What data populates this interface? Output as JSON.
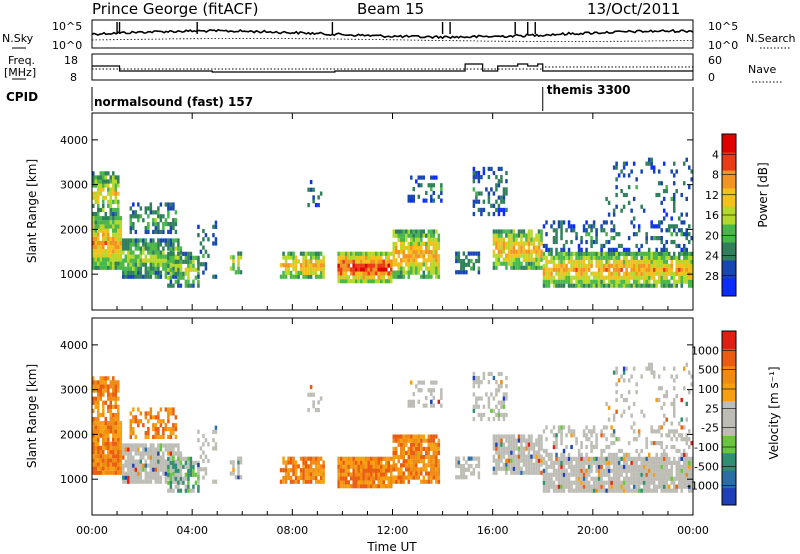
{
  "header": {
    "station": "Prince George (fitACF)",
    "beam": "Beam 15",
    "date": "13/Oct/2011"
  },
  "sky_panel": {
    "left_label": "N.Sky",
    "right_label": "N.Search",
    "tick_top": "10^5",
    "tick_bottom": "10^0"
  },
  "freq_panel": {
    "left_label_line1": "Freq.",
    "left_label_line2": "[MHz]",
    "left_ticks": [
      "18",
      "8"
    ],
    "right_label": "Nave",
    "right_ticks": [
      "60",
      "0"
    ]
  },
  "cpid_panel": {
    "label": "CPID",
    "modes": [
      {
        "name": "normalsound (fast) 157",
        "start_h": 0,
        "end_h": 18
      },
      {
        "name": "themis 3300",
        "start_h": 18,
        "end_h": 24
      }
    ]
  },
  "chart_data": [
    {
      "type": "heatmap",
      "name": "power",
      "ylabel": "Slant Range [km]",
      "ylim": [
        200,
        4600
      ],
      "yticks": [
        "1000",
        "2000",
        "3000",
        "4000"
      ],
      "colorbar_label": "Power [dB]",
      "colorbar_ticks": [
        "4",
        "8",
        "12",
        "16",
        "20",
        "24",
        "28"
      ],
      "colorbar_colors": [
        "#0b2bff",
        "#1846b0",
        "#2f7f5b",
        "#48b648",
        "#b5d92a",
        "#f4c01c",
        "#f39321",
        "#ea3b16",
        "#e00000"
      ]
    },
    {
      "type": "heatmap",
      "name": "velocity",
      "ylabel": "Slant Range [km]",
      "ylim": [
        200,
        4600
      ],
      "yticks": [
        "1000",
        "2000",
        "3000",
        "4000"
      ],
      "colorbar_label": "Velocity [m s⁻¹]",
      "colorbar_ticks": [
        "1000",
        "500",
        "100",
        "25",
        "-25",
        "-100",
        "-500",
        "-1000"
      ],
      "colorbar_colors": [
        "#1d3fb8",
        "#2a6ea5",
        "#2f8f70",
        "#69c440",
        "#bdbdb5",
        "#bdbdb5",
        "#f5a013",
        "#f08a10",
        "#ea5d10",
        "#e21e10"
      ]
    }
  ],
  "x_axis": {
    "label": "Time UT",
    "ticks": [
      "00:00",
      "04:00",
      "08:00",
      "12:00",
      "16:00",
      "20:00",
      "00:00"
    ],
    "xlim_hours": [
      0,
      24
    ]
  },
  "colors": {
    "background": "#ffffff",
    "frame": "#000000",
    "ground_scatter": "#bdbdb5"
  }
}
